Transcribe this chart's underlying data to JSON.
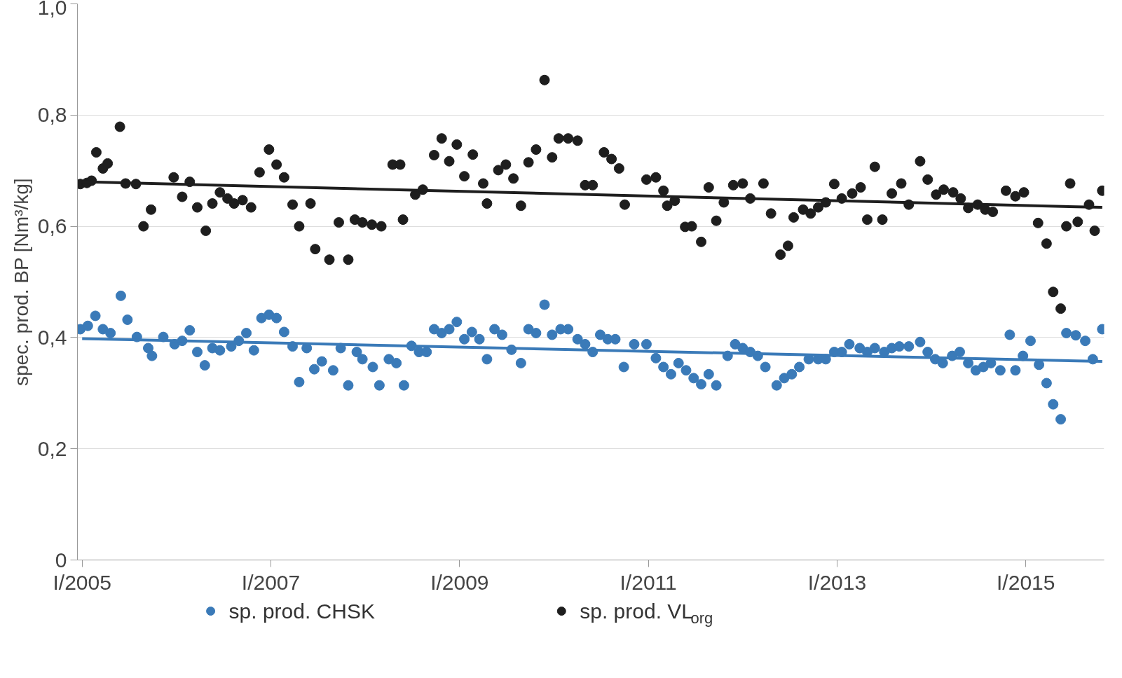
{
  "chart_data": {
    "type": "scatter",
    "ylabel": "spec. prod. BP [Nm³/kg]",
    "xlim": [
      2004.95,
      2015.83
    ],
    "ylim": [
      0,
      1.0
    ],
    "xticks": [
      {
        "value": 2005,
        "label": "I/2005"
      },
      {
        "value": 2007,
        "label": "I/2007"
      },
      {
        "value": 2009,
        "label": "I/2009"
      },
      {
        "value": 2011,
        "label": "I/2011"
      },
      {
        "value": 2013,
        "label": "I/2013"
      },
      {
        "value": 2015,
        "label": "I/2015"
      }
    ],
    "yticks": [
      0,
      {
        "value": 0.2,
        "label": "0,2"
      },
      {
        "value": 0.4,
        "label": "0,4"
      },
      {
        "value": 0.6,
        "label": "0,6"
      },
      {
        "value": 0.8,
        "label": "0,8"
      },
      {
        "value": 1.0,
        "label": "1,0"
      }
    ],
    "grid": "y",
    "legend": "bottom",
    "marker": "circle",
    "series": [
      {
        "name": "sp. prod. CHSK",
        "color": "#3a7ab8",
        "x": [
          2004.98,
          2005.06,
          2005.14,
          2005.22,
          2005.3,
          2005.41,
          2005.48,
          2005.58,
          2005.7,
          2005.74,
          2005.86,
          2005.98,
          2006.06,
          2006.14,
          2006.22,
          2006.3,
          2006.38,
          2006.46,
          2006.58,
          2006.66,
          2006.74,
          2006.82,
          2006.9,
          2006.98,
          2007.06,
          2007.14,
          2007.23,
          2007.3,
          2007.38,
          2007.46,
          2007.54,
          2007.66,
          2007.74,
          2007.82,
          2007.91,
          2007.97,
          2008.08,
          2008.15,
          2008.25,
          2008.33,
          2008.41,
          2008.49,
          2008.57,
          2008.65,
          2008.73,
          2008.81,
          2008.89,
          2008.97,
          2009.05,
          2009.13,
          2009.21,
          2009.29,
          2009.37,
          2009.45,
          2009.55,
          2009.65,
          2009.73,
          2009.81,
          2009.9,
          2009.98,
          2010.07,
          2010.15,
          2010.25,
          2010.33,
          2010.41,
          2010.49,
          2010.57,
          2010.65,
          2010.74,
          2010.85,
          2010.98,
          2011.08,
          2011.16,
          2011.24,
          2011.32,
          2011.4,
          2011.48,
          2011.56,
          2011.64,
          2011.72,
          2011.84,
          2011.92,
          2012.0,
          2012.08,
          2012.16,
          2012.24,
          2012.36,
          2012.44,
          2012.52,
          2012.6,
          2012.7,
          2012.8,
          2012.88,
          2012.97,
          2013.05,
          2013.13,
          2013.24,
          2013.32,
          2013.4,
          2013.5,
          2013.58,
          2013.66,
          2013.76,
          2013.88,
          2013.96,
          2014.04,
          2014.12,
          2014.22,
          2014.3,
          2014.39,
          2014.47,
          2014.55,
          2014.63,
          2014.73,
          2014.83,
          2014.89,
          2014.97,
          2015.05,
          2015.14,
          2015.22,
          2015.29,
          2015.37,
          2015.43,
          2015.53,
          2015.63,
          2015.71,
          2015.81
        ],
        "values": [
          0.415,
          0.421,
          0.439,
          0.415,
          0.408,
          0.475,
          0.432,
          0.401,
          0.381,
          0.367,
          0.401,
          0.388,
          0.394,
          0.413,
          0.374,
          0.35,
          0.381,
          0.377,
          0.384,
          0.394,
          0.408,
          0.377,
          0.435,
          0.441,
          0.435,
          0.41,
          0.384,
          0.32,
          0.381,
          0.343,
          0.357,
          0.341,
          0.381,
          0.314,
          0.374,
          0.361,
          0.347,
          0.314,
          0.361,
          0.354,
          0.314,
          0.385,
          0.374,
          0.374,
          0.415,
          0.408,
          0.415,
          0.428,
          0.397,
          0.41,
          0.397,
          0.361,
          0.415,
          0.405,
          0.378,
          0.354,
          0.415,
          0.408,
          0.459,
          0.405,
          0.415,
          0.415,
          0.397,
          0.388,
          0.374,
          0.405,
          0.397,
          0.397,
          0.347,
          0.388,
          0.388,
          0.363,
          0.347,
          0.334,
          0.354,
          0.341,
          0.327,
          0.316,
          0.334,
          0.314,
          0.367,
          0.388,
          0.381,
          0.374,
          0.367,
          0.347,
          0.314,
          0.327,
          0.334,
          0.347,
          0.361,
          0.361,
          0.361,
          0.374,
          0.374,
          0.388,
          0.381,
          0.374,
          0.381,
          0.374,
          0.381,
          0.384,
          0.384,
          0.392,
          0.374,
          0.361,
          0.354,
          0.367,
          0.374,
          0.354,
          0.341,
          0.347,
          0.354,
          0.341,
          0.405,
          0.341,
          0.367,
          0.394,
          0.351,
          0.318,
          0.28,
          0.253,
          0.408,
          0.404,
          0.394,
          0.361,
          0.415
        ]
      },
      {
        "name": "sp. prod. VL$_{org}$",
        "color": "#1e1e1e",
        "x": [
          2004.98,
          2005.05,
          2005.1,
          2005.15,
          2005.22,
          2005.27,
          2005.4,
          2005.46,
          2005.57,
          2005.65,
          2005.73,
          2005.97,
          2006.06,
          2006.14,
          2006.22,
          2006.31,
          2006.38,
          2006.46,
          2006.54,
          2006.61,
          2006.7,
          2006.79,
          2006.88,
          2006.98,
          2007.06,
          2007.14,
          2007.23,
          2007.3,
          2007.42,
          2007.47,
          2007.62,
          2007.72,
          2007.82,
          2007.89,
          2007.97,
          2008.07,
          2008.17,
          2008.29,
          2008.37,
          2008.4,
          2008.53,
          2008.61,
          2008.73,
          2008.81,
          2008.89,
          2008.97,
          2009.05,
          2009.14,
          2009.25,
          2009.29,
          2009.41,
          2009.49,
          2009.57,
          2009.65,
          2009.73,
          2009.81,
          2009.9,
          2009.98,
          2010.05,
          2010.15,
          2010.25,
          2010.33,
          2010.41,
          2010.53,
          2010.61,
          2010.69,
          2010.75,
          2010.98,
          2011.08,
          2011.16,
          2011.2,
          2011.28,
          2011.39,
          2011.46,
          2011.56,
          2011.64,
          2011.72,
          2011.8,
          2011.9,
          2012.0,
          2012.08,
          2012.22,
          2012.3,
          2012.4,
          2012.48,
          2012.54,
          2012.64,
          2012.72,
          2012.8,
          2012.88,
          2012.97,
          2013.05,
          2013.16,
          2013.25,
          2013.32,
          2013.4,
          2013.48,
          2013.58,
          2013.68,
          2013.76,
          2013.88,
          2013.96,
          2014.05,
          2014.13,
          2014.23,
          2014.31,
          2014.39,
          2014.49,
          2014.57,
          2014.65,
          2014.79,
          2014.89,
          2014.98,
          2015.13,
          2015.22,
          2015.29,
          2015.37,
          2015.43,
          2015.47,
          2015.55,
          2015.67,
          2015.73,
          2015.81
        ],
        "values": [
          0.676,
          0.678,
          0.682,
          0.733,
          0.704,
          0.713,
          0.779,
          0.677,
          0.676,
          0.6,
          0.63,
          0.688,
          0.653,
          0.68,
          0.634,
          0.592,
          0.641,
          0.661,
          0.65,
          0.641,
          0.647,
          0.634,
          0.697,
          0.738,
          0.711,
          0.688,
          0.639,
          0.6,
          0.641,
          0.559,
          0.54,
          0.607,
          0.54,
          0.612,
          0.607,
          0.603,
          0.6,
          0.711,
          0.711,
          0.612,
          0.657,
          0.666,
          0.728,
          0.758,
          0.717,
          0.747,
          0.69,
          0.729,
          0.677,
          0.641,
          0.701,
          0.711,
          0.686,
          0.637,
          0.715,
          0.738,
          0.863,
          0.724,
          0.758,
          0.758,
          0.754,
          0.674,
          0.674,
          0.733,
          0.721,
          0.704,
          0.639,
          0.684,
          0.688,
          0.664,
          0.637,
          0.646,
          0.599,
          0.6,
          0.572,
          0.67,
          0.61,
          0.643,
          0.674,
          0.677,
          0.65,
          0.677,
          0.623,
          0.549,
          0.565,
          0.616,
          0.63,
          0.623,
          0.634,
          0.643,
          0.676,
          0.65,
          0.659,
          0.67,
          0.612,
          0.707,
          0.612,
          0.659,
          0.677,
          0.639,
          0.717,
          0.684,
          0.657,
          0.666,
          0.661,
          0.65,
          0.633,
          0.639,
          0.63,
          0.626,
          0.664,
          0.654,
          0.661,
          0.606,
          0.569,
          0.482,
          0.452,
          0.6,
          0.677,
          0.608,
          0.639,
          0.592,
          0.664
        ]
      },
      {
        "type": "line",
        "marker": "none",
        "color": "#3a7ab8",
        "x": [
          2005,
          2015.81
        ],
        "values": [
          0.398,
          0.357
        ]
      },
      {
        "type": "line",
        "marker": "none",
        "color": "#1e1e1e",
        "x": [
          2005,
          2015.81
        ],
        "values": [
          0.68,
          0.634
        ]
      }
    ]
  }
}
